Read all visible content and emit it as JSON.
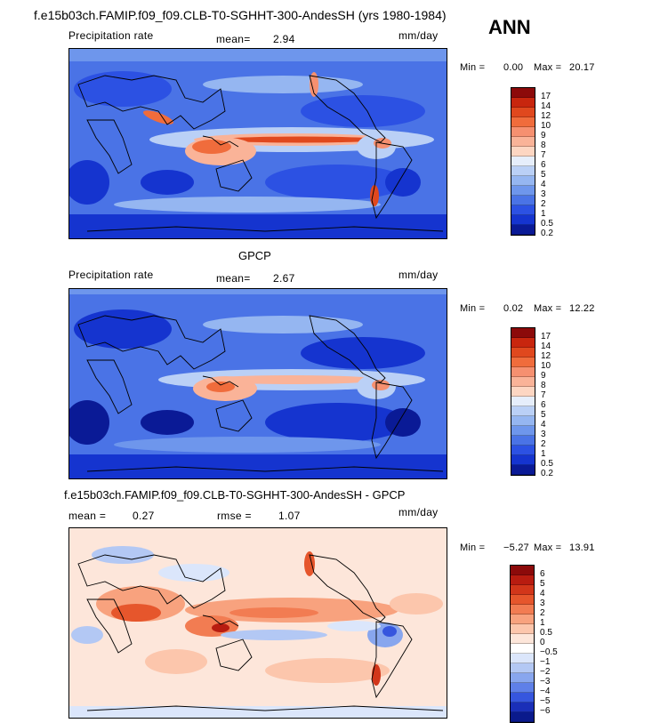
{
  "main_title": "f.e15b03ch.FAMIP.f09_f09.CLB-T0-SGHHT-300-AndesSH (yrs 1980-1984)",
  "season": "ANN",
  "panel1": {
    "left_label": "Precipitation rate",
    "mean_label": "mean=",
    "mean_value": "2.94",
    "units": "mm/day",
    "min_label": "Min =",
    "min_value": "0.00",
    "max_label": "Max =",
    "max_value": "20.17",
    "levels": [
      "17",
      "14",
      "12",
      "10",
      "9",
      "8",
      "7",
      "6",
      "5",
      "4",
      "3",
      "2",
      "1",
      "0.5",
      "0.2"
    ],
    "colors": [
      "#8c0a0a",
      "#c8260e",
      "#e0481e",
      "#f06c3c",
      "#f69070",
      "#fab398",
      "#fdd6c2",
      "#e6eefb",
      "#bad0f6",
      "#95b6f1",
      "#6e96ec",
      "#4a73e6",
      "#2c51e3",
      "#1534cf",
      "#0a1a96"
    ]
  },
  "panel2": {
    "title": "GPCP",
    "left_label": "Precipitation rate",
    "mean_label": "mean=",
    "mean_value": "2.67",
    "units": "mm/day",
    "min_label": "Min =",
    "min_value": "0.02",
    "max_label": "Max =",
    "max_value": "12.22",
    "levels": [
      "17",
      "14",
      "12",
      "10",
      "9",
      "8",
      "7",
      "6",
      "5",
      "4",
      "3",
      "2",
      "1",
      "0.5",
      "0.2"
    ],
    "colors": [
      "#8c0a0a",
      "#c8260e",
      "#e0481e",
      "#f06c3c",
      "#f69070",
      "#fab398",
      "#fdd6c2",
      "#e6eefb",
      "#bad0f6",
      "#95b6f1",
      "#6e96ec",
      "#4a73e6",
      "#2c51e3",
      "#1534cf",
      "#0a1a96"
    ]
  },
  "panel3": {
    "title": "f.e15b03ch.FAMIP.f09_f09.CLB-T0-SGHHT-300-AndesSH - GPCP",
    "mean_label": "mean =",
    "mean_value": "0.27",
    "rmse_label": "rmse =",
    "rmse_value": "1.07",
    "units": "mm/day",
    "min_label": "Min =",
    "min_value": "−5.27",
    "max_label": "Max =",
    "max_value": "13.91",
    "levels": [
      "6",
      "5",
      "4",
      "3",
      "2",
      "1",
      "0.5",
      "0",
      "−0.5",
      "−1",
      "−2",
      "−3",
      "−4",
      "−5",
      "−6"
    ],
    "colors": [
      "#8c0a0a",
      "#b81c10",
      "#d2361a",
      "#e6562c",
      "#f27c52",
      "#f8a27e",
      "#fcc6ac",
      "#fde6da",
      "#ffffff",
      "#dbe6fb",
      "#b3c8f4",
      "#88a6ee",
      "#5f80e8",
      "#3656de",
      "#1a2fb8",
      "#0a1a8c"
    ]
  }
}
